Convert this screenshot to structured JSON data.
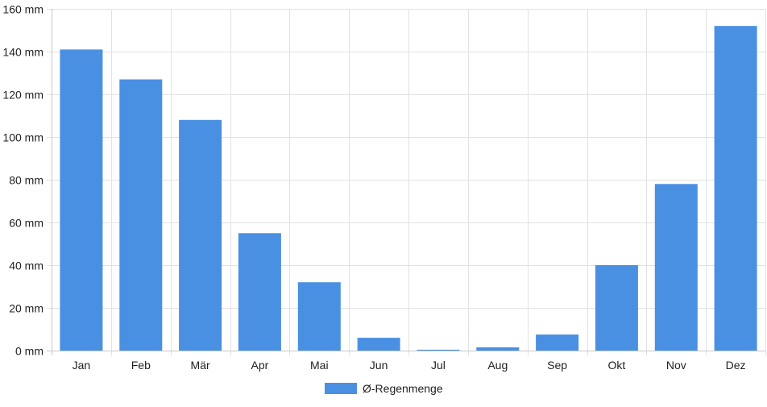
{
  "chart_data": {
    "type": "bar",
    "categories": [
      "Jan",
      "Feb",
      "Mär",
      "Apr",
      "Mai",
      "Jun",
      "Jul",
      "Aug",
      "Sep",
      "Okt",
      "Nov",
      "Dez"
    ],
    "series": [
      {
        "name": "Ø-Regenmenge",
        "values": [
          141,
          127,
          108,
          55,
          32,
          6,
          0.4,
          1.5,
          7.5,
          40,
          78,
          152
        ],
        "color": "#4a90e2"
      }
    ],
    "y_unit": "mm",
    "ylim": [
      0,
      160
    ],
    "yticks": [
      0,
      20,
      40,
      60,
      80,
      100,
      120,
      140,
      160
    ],
    "ytick_labels": [
      "0 mm",
      "20 mm",
      "40 mm",
      "60 mm",
      "80 mm",
      "100 mm",
      "120 mm",
      "140 mm",
      "160 mm"
    ],
    "grid": true,
    "legend_position": "bottom-center"
  }
}
